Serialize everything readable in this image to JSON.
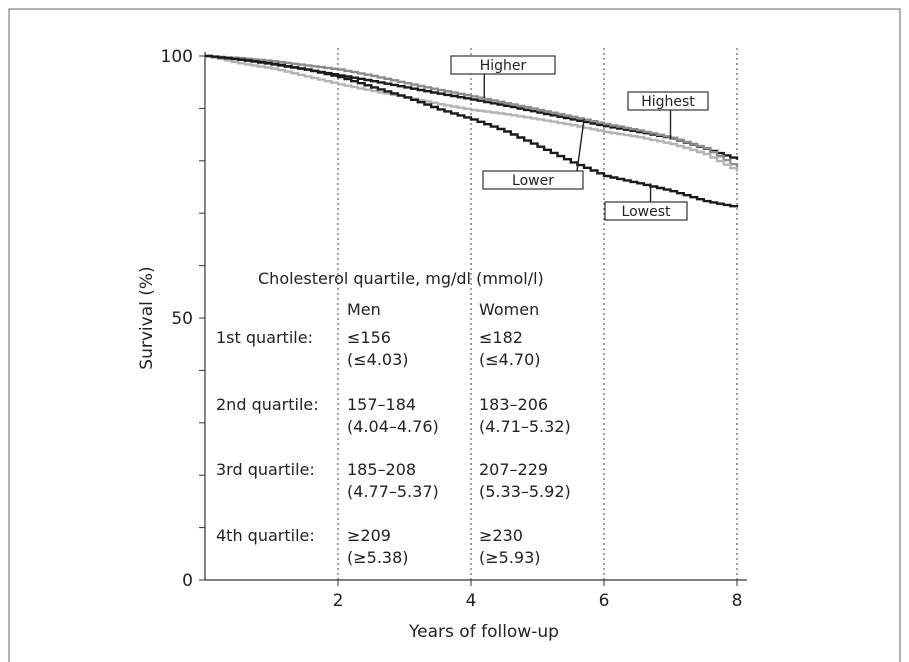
{
  "chart_data": {
    "type": "line",
    "xlabel": "Years of follow-up",
    "ylabel": "Survival (%)",
    "xlim": [
      0,
      8.2
    ],
    "ylim": [
      0,
      100
    ],
    "x_ticks": [
      "2",
      "4",
      "6",
      "8"
    ],
    "x_tick_values": [
      2,
      4,
      6,
      8
    ],
    "y_ticks": [
      "0",
      "50",
      "100"
    ],
    "y_tick_values": [
      0,
      50,
      100
    ],
    "reference_lines_x": [
      2,
      4,
      6,
      8
    ],
    "series": [
      {
        "name": "Highest",
        "color": "#1a1a1a",
        "x": [
          0,
          0.5,
          1.0,
          1.5,
          2.0,
          2.5,
          3.0,
          3.5,
          4.0,
          4.5,
          5.0,
          5.5,
          6.0,
          6.5,
          7.0,
          7.5,
          8.0
        ],
        "y": [
          100,
          99.3,
          98.4,
          97.4,
          96.3,
          95.2,
          94.0,
          92.8,
          91.7,
          90.5,
          89.2,
          87.9,
          86.6,
          85.5,
          84.3,
          82.3,
          80.2
        ]
      },
      {
        "name": "Higher",
        "color": "#8c8c8c",
        "x": [
          0,
          0.5,
          1.0,
          1.5,
          2.0,
          2.5,
          3.0,
          3.5,
          4.0,
          4.5,
          5.0,
          5.5,
          6.0,
          6.5,
          7.0,
          7.5,
          8.0
        ],
        "y": [
          100,
          99.6,
          99.0,
          98.2,
          97.4,
          96.2,
          94.8,
          93.5,
          92.3,
          91.0,
          89.7,
          88.4,
          87.0,
          85.8,
          84.4,
          82.4,
          78.6
        ]
      },
      {
        "name": "Lower",
        "color": "#b4b4b4",
        "x": [
          0,
          0.5,
          1.0,
          1.5,
          2.0,
          2.5,
          3.0,
          3.5,
          4.0,
          4.5,
          5.0,
          5.5,
          6.0,
          6.5,
          7.0,
          7.5,
          8.0
        ],
        "y": [
          100,
          98.6,
          97.6,
          96.1,
          94.6,
          93.3,
          92.1,
          90.8,
          89.7,
          88.9,
          87.9,
          86.8,
          85.5,
          84.5,
          83.2,
          81.3,
          77.9
        ]
      },
      {
        "name": "Lowest",
        "color": "#1a1a1a",
        "x": [
          0,
          0.5,
          1.0,
          1.5,
          2.0,
          2.5,
          3.0,
          3.5,
          4.0,
          4.5,
          5.0,
          5.5,
          6.0,
          6.5,
          7.0,
          7.5,
          8.0
        ],
        "y": [
          100,
          99.3,
          98.5,
          97.4,
          96.0,
          94.0,
          92.1,
          89.8,
          87.9,
          85.6,
          82.7,
          79.7,
          77.1,
          75.7,
          74.2,
          72.3,
          71.1
        ]
      }
    ],
    "callouts": [
      {
        "label": "Higher",
        "target_x": 4.2,
        "target_y": 92.0
      },
      {
        "label": "Highest",
        "target_x": 7.0,
        "target_y": 84.2
      },
      {
        "label": "Lower",
        "target_x": 5.7,
        "target_y": 88.0
      },
      {
        "label": "Lowest",
        "target_x": 6.7,
        "target_y": 75.7
      }
    ],
    "inset_table": {
      "title": "Cholesterol quartile, mg/dl (mmol/l)",
      "columns": [
        "",
        "Men",
        "Women"
      ],
      "rows": [
        {
          "label": "1st quartile:",
          "men": [
            "≤156",
            "(≤4.03)"
          ],
          "women": [
            "≤182",
            "(≤4.70)"
          ]
        },
        {
          "label": "2nd quartile:",
          "men": [
            "157–184",
            "(4.04–4.76)"
          ],
          "women": [
            "183–206",
            "(4.71–5.32)"
          ]
        },
        {
          "label": "3rd quartile:",
          "men": [
            "185–208",
            "(4.77–5.37)"
          ],
          "women": [
            "207–229",
            "(5.33–5.92)"
          ]
        },
        {
          "label": "4th quartile:",
          "men": [
            "≥209",
            "(≥5.38)"
          ],
          "women": [
            "≥230",
            "(≥5.93)"
          ]
        }
      ]
    }
  }
}
